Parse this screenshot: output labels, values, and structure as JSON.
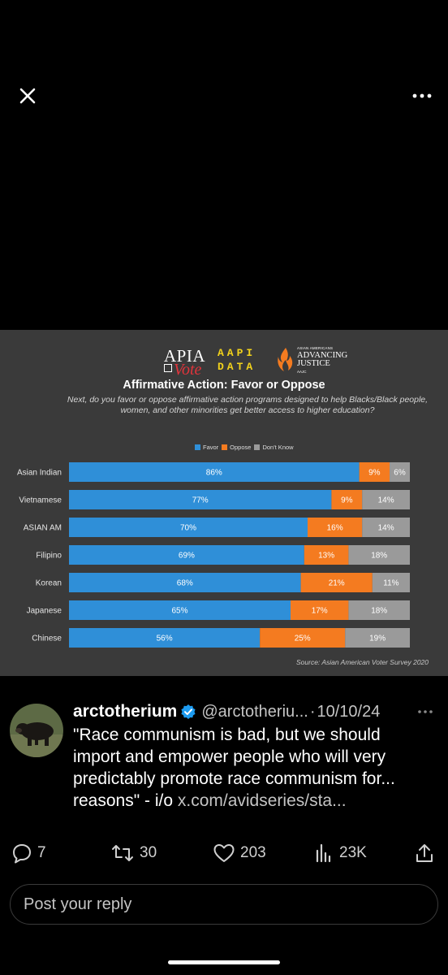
{
  "media_viewer": {
    "close_icon": "close-icon",
    "more_icon": "more-horizontal-icon"
  },
  "image": {
    "logos": {
      "apia": "APIA",
      "vote": "Vote",
      "aapi_line1": "AAPI",
      "aapi_line2": "DATA",
      "aajc_small": "ASIAN AMERICANS",
      "aajc_line1": "ADVANCING",
      "aajc_line2": "JUSTICE",
      "aajc_tag": "AAJC"
    },
    "source": "Source: Asian American Voter Survey 2020"
  },
  "chart_data": {
    "type": "bar",
    "orientation": "horizontal",
    "stacked": true,
    "percent": true,
    "title": "Affirmative Action: Favor or Oppose",
    "subtitle": "Next, do you favor or oppose affirmative action programs designed to help Blacks/Black people, women, and other minorities get better access to higher education?",
    "categories": [
      "Asian Indian",
      "Vietnamese",
      "ASIAN AM",
      "Filipino",
      "Korean",
      "Japanese",
      "Chinese"
    ],
    "series": [
      {
        "name": "Favor",
        "color": "#2f8fd8",
        "values": [
          86,
          77,
          70,
          69,
          68,
          65,
          56
        ],
        "labels": [
          "86%",
          "77%",
          "70%",
          "69%",
          "68%",
          "65%",
          "56%"
        ]
      },
      {
        "name": "Oppose",
        "color": "#f47b20",
        "values": [
          9,
          9,
          16,
          13,
          21,
          17,
          25
        ],
        "labels": [
          "9%",
          "9%",
          "16%",
          "13%",
          "21%",
          "17%",
          "25%"
        ]
      },
      {
        "name": "Don't Know",
        "color": "#9a9a9a",
        "values": [
          6,
          14,
          14,
          18,
          11,
          18,
          19
        ],
        "labels": [
          "6%",
          "14%",
          "14%",
          "18%",
          "11%",
          "18%",
          "19%"
        ]
      }
    ],
    "legend": "top-center",
    "grid": false
  },
  "tweet": {
    "author_name": "arctotherium",
    "handle": "@arctotheriu...",
    "separator": "·",
    "timestamp": "10/10/24",
    "text": "\"Race communism is bad, but we should import and empower people who will very predictably promote race communism for... reasons\" - i/o",
    "link": "x.com/avidseries/sta...",
    "actions": {
      "replies": "7",
      "reposts": "30",
      "likes": "203",
      "views": "23K"
    }
  },
  "reply": {
    "placeholder": "Post your reply"
  },
  "colors": {
    "background": "#000000",
    "chart_panel": "#3a3a3a",
    "verified_badge": "#1d9bf0"
  }
}
